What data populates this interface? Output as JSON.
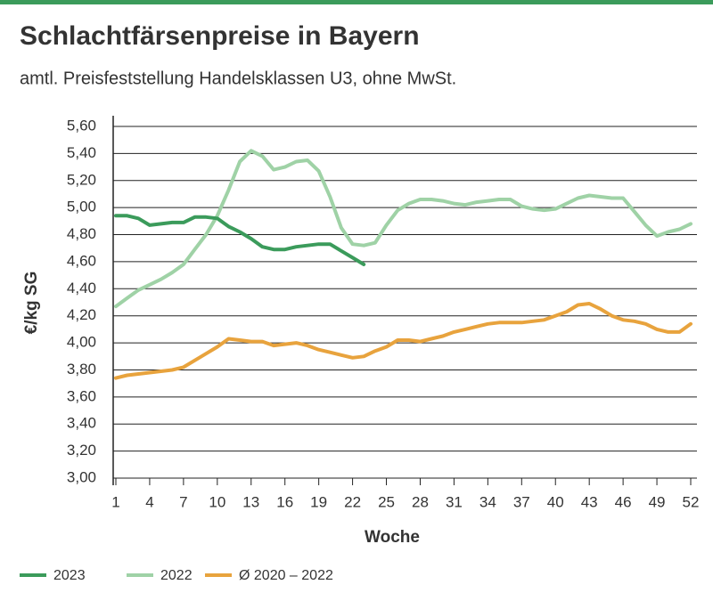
{
  "chart_data": {
    "type": "line",
    "title": "Schlachtfärsenpreise in Bayern",
    "subtitle": "amtl. Preisfeststellung Handelsklassen U3, ohne MwSt.",
    "y_label": "€/kg SG",
    "x_label": "Woche",
    "x": [
      1,
      2,
      3,
      4,
      5,
      6,
      7,
      8,
      9,
      10,
      11,
      12,
      13,
      14,
      15,
      16,
      17,
      18,
      19,
      20,
      21,
      22,
      23,
      24,
      25,
      26,
      27,
      28,
      29,
      30,
      31,
      32,
      33,
      34,
      35,
      36,
      37,
      38,
      39,
      40,
      41,
      42,
      43,
      44,
      45,
      46,
      47,
      48,
      49,
      50,
      51,
      52
    ],
    "xlim": [
      1,
      52
    ],
    "xticks": [
      1,
      4,
      7,
      10,
      13,
      16,
      19,
      22,
      25,
      28,
      31,
      34,
      37,
      40,
      43,
      46,
      49,
      52
    ],
    "ylim": [
      3.0,
      5.6
    ],
    "yticks": [
      {
        "value": 3.0,
        "label": "3,00"
      },
      {
        "value": 3.2,
        "label": "3,20"
      },
      {
        "value": 3.4,
        "label": "3,40"
      },
      {
        "value": 3.6,
        "label": "3,60"
      },
      {
        "value": 3.8,
        "label": "3,80"
      },
      {
        "value": 4.0,
        "label": "4,00"
      },
      {
        "value": 4.2,
        "label": "4,20"
      },
      {
        "value": 4.4,
        "label": "4,40"
      },
      {
        "value": 4.6,
        "label": "4,60"
      },
      {
        "value": 4.8,
        "label": "4,80"
      },
      {
        "value": 5.0,
        "label": "5,00"
      },
      {
        "value": 5.2,
        "label": "5,20"
      },
      {
        "value": 5.4,
        "label": "5,40"
      },
      {
        "value": 5.6,
        "label": "5,60"
      }
    ],
    "grid": true,
    "series": [
      {
        "name": "2023",
        "color": "#3b9b5b",
        "values": [
          4.94,
          4.94,
          4.92,
          4.87,
          4.88,
          4.89,
          4.89,
          4.93,
          4.93,
          4.92,
          4.86,
          4.82,
          4.77,
          4.71,
          4.69,
          4.69,
          4.71,
          4.72,
          4.73,
          4.73,
          4.68,
          4.63,
          4.58,
          null,
          null,
          null,
          null,
          null,
          null,
          null,
          null,
          null,
          null,
          null,
          null,
          null,
          null,
          null,
          null,
          null,
          null,
          null,
          null,
          null,
          null,
          null,
          null,
          null,
          null,
          null,
          null,
          null
        ]
      },
      {
        "name": "2022",
        "color": "#9fd2a6",
        "values": [
          4.27,
          4.33,
          4.39,
          4.43,
          4.47,
          4.52,
          4.58,
          4.69,
          4.8,
          4.94,
          5.13,
          5.34,
          5.42,
          5.38,
          5.28,
          5.3,
          5.34,
          5.35,
          5.27,
          5.08,
          4.85,
          4.73,
          4.72,
          4.74,
          4.87,
          4.98,
          5.03,
          5.06,
          5.06,
          5.05,
          5.03,
          5.02,
          5.04,
          5.05,
          5.06,
          5.06,
          5.01,
          4.99,
          4.98,
          4.99,
          5.03,
          5.07,
          5.09,
          5.08,
          5.07,
          5.07,
          4.97,
          4.87,
          4.79,
          4.82,
          4.84,
          4.88
        ]
      },
      {
        "name": "Ø 2020 – 2022",
        "color": "#e8a33d",
        "values": [
          3.74,
          3.76,
          3.77,
          3.78,
          3.79,
          3.8,
          3.82,
          3.87,
          3.92,
          3.97,
          4.03,
          4.02,
          4.01,
          4.01,
          3.98,
          3.99,
          4.0,
          3.98,
          3.95,
          3.93,
          3.91,
          3.89,
          3.9,
          3.94,
          3.97,
          4.02,
          4.02,
          4.01,
          4.03,
          4.05,
          4.08,
          4.1,
          4.12,
          4.14,
          4.15,
          4.15,
          4.15,
          4.16,
          4.17,
          4.2,
          4.23,
          4.28,
          4.29,
          4.25,
          4.2,
          4.17,
          4.16,
          4.14,
          4.1,
          4.08,
          4.08,
          4.14
        ]
      }
    ]
  }
}
